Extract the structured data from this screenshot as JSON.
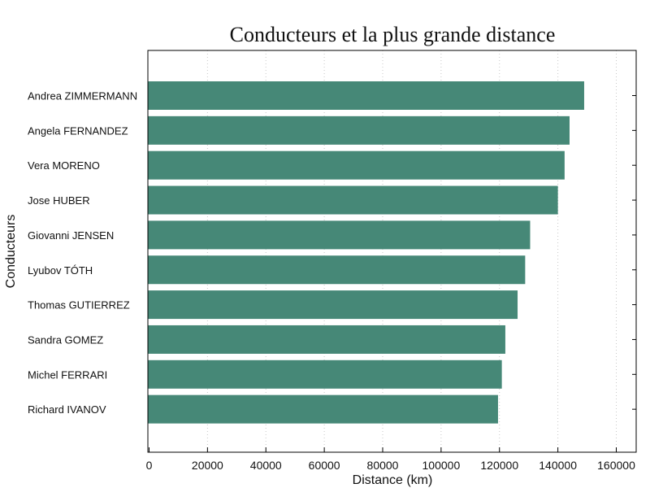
{
  "chart_data": {
    "type": "bar",
    "orientation": "horizontal",
    "title": "Conducteurs et la plus grande distance",
    "xlabel": "Distance (km)",
    "ylabel": "Conducteurs",
    "categories": [
      "Andrea ZIMMERMANN",
      "Angela FERNANDEZ",
      "Vera MORENO",
      "Jose HUBER",
      "Giovanni JENSEN",
      "Lyubov TÓTH",
      "Thomas GUTIERREZ",
      "Sandra GOMEZ",
      "Michel FERRARI",
      "Richard IVANOV"
    ],
    "values": [
      149000,
      144000,
      142300,
      140000,
      130500,
      128800,
      126200,
      122000,
      120800,
      119500
    ],
    "xlim": [
      0,
      160000
    ],
    "xticks": [
      0,
      20000,
      40000,
      60000,
      80000,
      100000,
      120000,
      140000,
      160000
    ],
    "xtick_labels": [
      "0",
      "20000",
      "40000",
      "60000",
      "80000",
      "100000",
      "120000",
      "140000",
      "160000"
    ],
    "grid": "vertical dotted",
    "bar_color": "#468877"
  }
}
